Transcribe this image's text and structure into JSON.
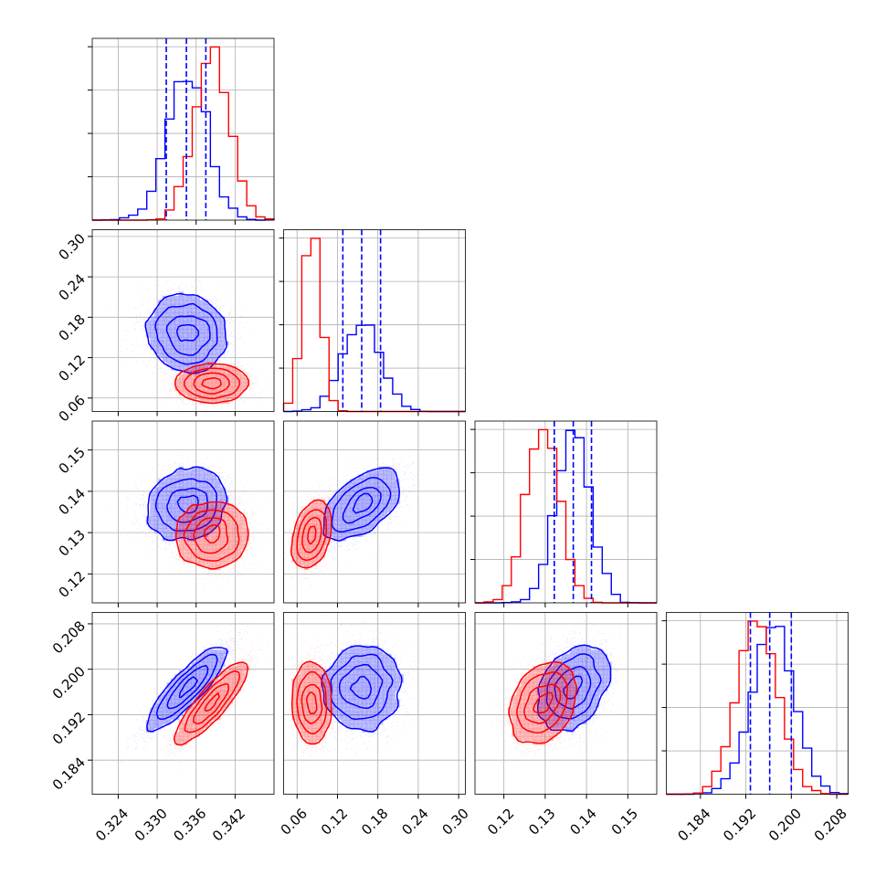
{
  "chart_data": {
    "type": "corner",
    "grid": true,
    "colors": {
      "series_a": "#0000ff",
      "series_b": "#ff0000",
      "quantile_lines": "#0000ff"
    },
    "parameters": [
      {
        "range": [
          0.32,
          0.348
        ],
        "ticks": [
          0.324,
          0.33,
          0.336,
          0.342
        ],
        "tick_labels": [
          "0.324",
          "0.330",
          "0.336",
          "0.342"
        ]
      },
      {
        "range": [
          0.04,
          0.31
        ],
        "ticks": [
          0.06,
          0.12,
          0.18,
          0.24,
          0.3
        ],
        "tick_labels": [
          "0.06",
          "0.12",
          "0.18",
          "0.24",
          "0.30"
        ]
      },
      {
        "range": [
          0.113,
          0.157
        ],
        "ticks": [
          0.12,
          0.13,
          0.14,
          0.15
        ],
        "tick_labels": [
          "0.12",
          "0.13",
          "0.14",
          "0.15"
        ]
      },
      {
        "range": [
          0.178,
          0.21
        ],
        "ticks": [
          0.184,
          0.192,
          0.2,
          0.208
        ],
        "tick_labels": [
          "0.184",
          "0.192",
          "0.200",
          "0.208"
        ]
      }
    ],
    "series": [
      {
        "color": "#0000ff",
        "mean": [
          0.3345,
          0.156,
          0.1368,
          0.1966
        ],
        "std": [
          0.003,
          0.028,
          0.0041,
          0.0036
        ],
        "corr": [
          [
            1.0,
            -0.1,
            0.1,
            0.9
          ],
          [
            -0.1,
            1.0,
            0.55,
            0.05
          ],
          [
            0.1,
            0.55,
            1.0,
            0.3
          ],
          [
            0.9,
            0.05,
            0.3,
            1.0
          ]
        ],
        "quantiles": [
          [
            0.3314,
            0.3345,
            0.3375
          ],
          [
            0.128,
            0.156,
            0.184
          ],
          [
            0.1322,
            0.1368,
            0.1412
          ],
          [
            0.1928,
            0.1962,
            0.2
          ]
        ]
      },
      {
        "color": "#ff0000",
        "mean": [
          0.3385,
          0.082,
          0.1295,
          0.1942
        ],
        "std": [
          0.0027,
          0.013,
          0.004,
          0.0035
        ],
        "corr": [
          [
            1.0,
            0.0,
            0.0,
            0.9
          ],
          [
            0.0,
            1.0,
            0.35,
            -0.05
          ],
          [
            0.0,
            0.35,
            1.0,
            0.3
          ],
          [
            0.9,
            -0.05,
            0.3,
            1.0
          ]
        ],
        "quantiles": null
      }
    ]
  }
}
